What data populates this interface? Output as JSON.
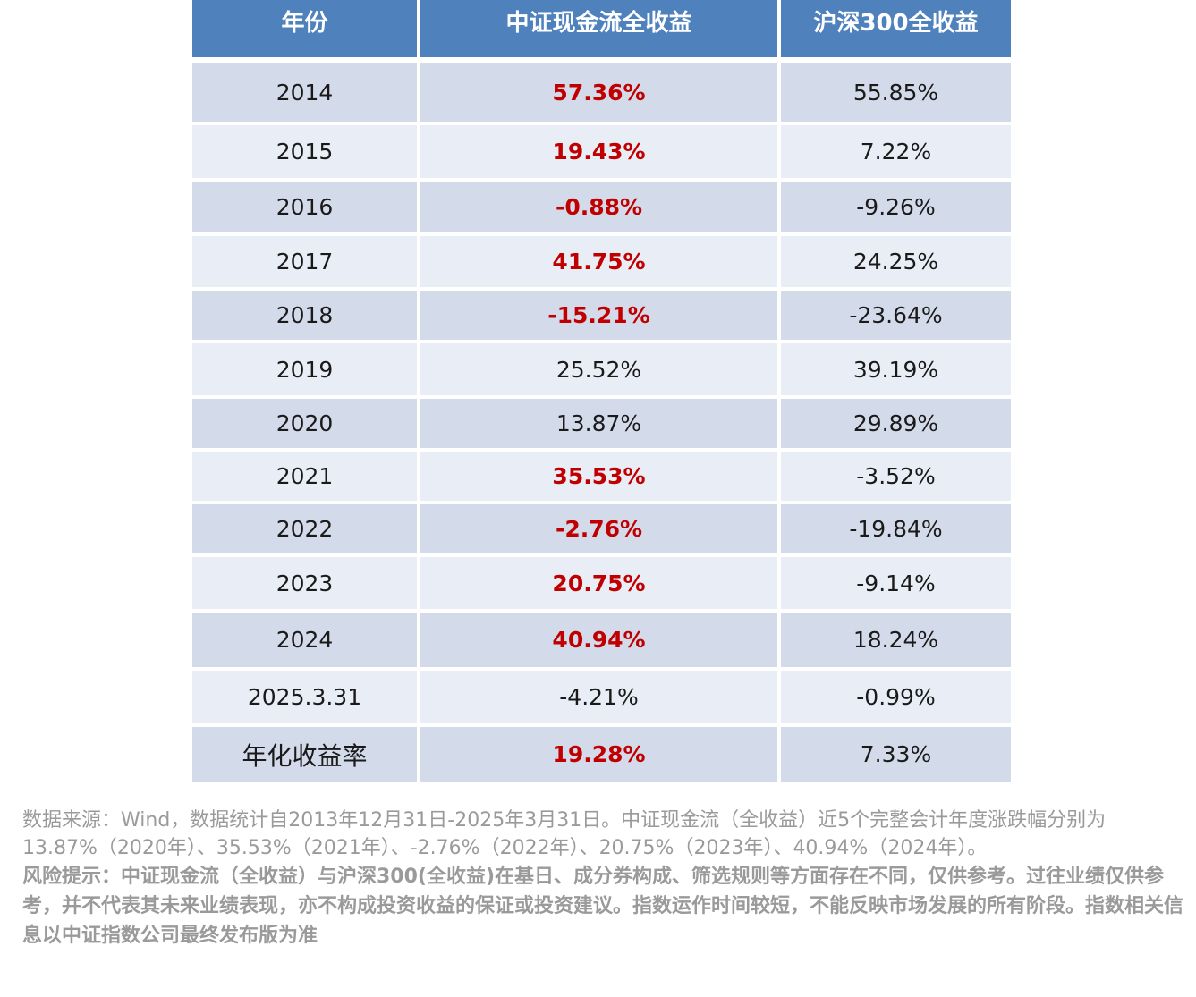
{
  "table": {
    "headers": [
      "年份",
      "中证现金流全收益",
      "沪深300全收益"
    ],
    "rows": [
      {
        "year": "2014",
        "index_return": "57.36%",
        "csi300_return": "55.85%",
        "highlight": true
      },
      {
        "year": "2015",
        "index_return": "19.43%",
        "csi300_return": "7.22%",
        "highlight": true
      },
      {
        "year": "2016",
        "index_return": "-0.88%",
        "csi300_return": "-9.26%",
        "highlight": true
      },
      {
        "year": "2017",
        "index_return": "41.75%",
        "csi300_return": "24.25%",
        "highlight": true
      },
      {
        "year": "2018",
        "index_return": "-15.21%",
        "csi300_return": "-23.64%",
        "highlight": true
      },
      {
        "year": "2019",
        "index_return": "25.52%",
        "csi300_return": "39.19%",
        "highlight": false
      },
      {
        "year": "2020",
        "index_return": "13.87%",
        "csi300_return": "29.89%",
        "highlight": false
      },
      {
        "year": "2021",
        "index_return": "35.53%",
        "csi300_return": "-3.52%",
        "highlight": true
      },
      {
        "year": "2022",
        "index_return": "-2.76%",
        "csi300_return": "-19.84%",
        "highlight": true
      },
      {
        "year": "2023",
        "index_return": "20.75%",
        "csi300_return": "-9.14%",
        "highlight": true
      },
      {
        "year": "2024",
        "index_return": "40.94%",
        "csi300_return": "18.24%",
        "highlight": true
      },
      {
        "year": "2025.3.31",
        "index_return": "-4.21%",
        "csi300_return": "-0.99%",
        "highlight": false
      },
      {
        "year": "年化收益率",
        "index_return": "19.28%",
        "csi300_return": "7.33%",
        "highlight": true
      }
    ]
  },
  "footer": {
    "source": "数据来源：Wind，数据统计自2013年12月31日-2025年3月31日。中证现金流（全收益）近5个完整会计年度涨跌幅分别为13.87%（2020年）、35.53%（2021年）、-2.76%（2022年）、20.75%（2023年）、40.94%（2024年）。",
    "risk": "风险提示：中证现金流（全收益）与沪深300(全收益)在基日、成分券构成、筛选规则等方面存在不同，仅供参考。过往业绩仅供参考，并不代表其未来业绩表现，亦不构成投资收益的保证或投资建议。指数运作时间较短，不能反映市场发展的所有阶段。指数相关信息以中证指数公司最终发布版为准"
  },
  "colors": {
    "header_bg": "#4f81bd",
    "band_a": "#d3daea",
    "band_b": "#e9edf5",
    "highlight_text": "#c00000",
    "footer_text": "#9a9a9a"
  }
}
